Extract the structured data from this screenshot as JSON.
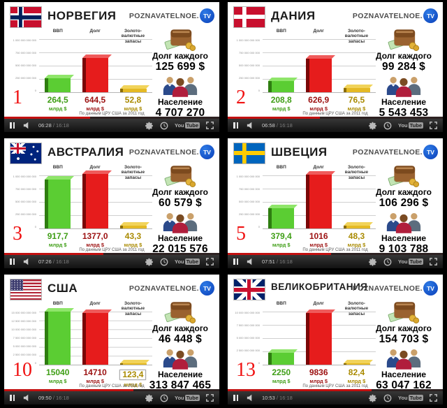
{
  "logo": {
    "brand": "POZNAVATELNOE.",
    "tv": "TV"
  },
  "chart": {
    "col_gdp": "ВВП",
    "col_debt": "Долг",
    "col_reserves": "Золото-валютные запасы",
    "unit": "млрд $",
    "source_note": "По данным ЦРУ США за 2011 год"
  },
  "sidebar": {
    "debt_each_label": "Долг каждого",
    "population_label": "Население"
  },
  "player": {
    "duration": "16:18",
    "sep": " / ",
    "yt_you": "You",
    "yt_tube": "Tube"
  },
  "colors": {
    "bar_green": "#5bcd33",
    "bar_red": "#e61c1c",
    "bar_gold": "#e5ba24",
    "value_green": "#3f9e16",
    "value_red": "#9c1111",
    "value_gold": "#a98a00",
    "rank_red": "#f01010",
    "progress_red": "#c21010",
    "logo_blue": "#0a3fb8"
  },
  "panels": [
    {
      "rank": "1",
      "country": "НОРВЕГИЯ",
      "flag": "norway",
      "axis": [
        "1 000 000 000 000",
        "750 000 000 000",
        "500 000 000 000",
        "250 000 000 000",
        "0"
      ],
      "grid_size": "100% 25%",
      "values": {
        "gdp": "264,5",
        "debt": "644,5",
        "reserves": "52,8"
      },
      "bar_heights": {
        "gdp": "26%",
        "debt": "64%",
        "res": "6%"
      },
      "reserves_boxed": "false",
      "debt_each": "125 699 $",
      "population": "4 707 270",
      "time": "06:28",
      "progress": "40%"
    },
    {
      "rank": "2",
      "country": "ДАНИЯ",
      "flag": "denmark",
      "axis": [
        "1 000 000 000 000",
        "750 000 000 000",
        "500 000 000 000",
        "250 000 000 000",
        "0"
      ],
      "grid_size": "100% 25%",
      "values": {
        "gdp": "208,8",
        "debt": "626,9",
        "reserves": "76,5"
      },
      "bar_heights": {
        "gdp": "21%",
        "debt": "63%",
        "res": "8%"
      },
      "reserves_boxed": "false",
      "debt_each": "99 284 $",
      "population": "5 543 453",
      "time": "06:58",
      "progress": "43%"
    },
    {
      "rank": "3",
      "country": "АВСТРАЛИЯ",
      "flag": "australia",
      "axis": [
        "1 000 000 000 000",
        "750 000 000 000",
        "500 000 000 000",
        "250 000 000 000",
        "0"
      ],
      "grid_size": "100% 25%",
      "values": {
        "gdp": "917,7",
        "debt": "1377,0",
        "reserves": "43,3"
      },
      "bar_heights": {
        "gdp": "92%",
        "debt": "102%",
        "res": "5%"
      },
      "reserves_boxed": "false",
      "debt_each": "60 579 $",
      "population": "22 015 576",
      "time": "07:26",
      "progress": "46%"
    },
    {
      "rank": "5",
      "country": "ШВЕЦИЯ",
      "flag": "sweden",
      "axis": [
        "1 000 000 000 000",
        "750 000 000 000",
        "500 000 000 000",
        "250 000 000 000",
        "0"
      ],
      "grid_size": "100% 25%",
      "values": {
        "gdp": "379,4",
        "debt": "1016",
        "reserves": "48,3"
      },
      "bar_heights": {
        "gdp": "38%",
        "debt": "101%",
        "res": "5%"
      },
      "reserves_boxed": "false",
      "debt_each": "106 296 $",
      "population": "9 103 788",
      "time": "07:51",
      "progress": "48%"
    },
    {
      "rank": "10",
      "country": "США",
      "flag": "usa",
      "axis": [
        "15 000 000 000 000",
        "12 500 000 000 000",
        "10 000 000 000 000",
        "7 500 000 000 000",
        "5 000 000 000 000",
        "2 500 000 000 000",
        "0"
      ],
      "grid_size": "100% 16.667%",
      "values": {
        "gdp": "15040",
        "debt": "14710",
        "reserves": "123,4"
      },
      "bar_heights": {
        "gdp": "100%",
        "debt": "97%",
        "res": "3%"
      },
      "reserves_boxed": "true",
      "debt_each": "46 448 $",
      "population": "313 847 465",
      "time": "09:50",
      "progress": "60%"
    },
    {
      "rank": "13",
      "country": "ВЕЛИКОБРИТАНИЯ",
      "flag": "uk",
      "axis": [
        "10 000 000 000 000",
        "7 500 000 000 000",
        "5 000 000 000 000",
        "2 500 000 000 000",
        "0"
      ],
      "grid_size": "100% 25%",
      "values": {
        "gdp": "2250",
        "debt": "9836",
        "reserves": "82,4"
      },
      "bar_heights": {
        "gdp": "22%",
        "debt": "97%",
        "res": "3%"
      },
      "reserves_boxed": "false",
      "debt_each": "154 703 $",
      "population": "63 047 162",
      "time": "10:53",
      "progress": "67%"
    }
  ],
  "chart_data": [
    {
      "type": "bar",
      "title": "НОРВЕГИЯ",
      "categories": [
        "ВВП",
        "Долг",
        "Золото-валютные запасы"
      ],
      "values": [
        264.5,
        644.5,
        52.8
      ],
      "unit": "млрд $",
      "ylim": [
        0,
        1000
      ],
      "debt_per_person_usd": 125699,
      "population": 4707270
    },
    {
      "type": "bar",
      "title": "ДАНИЯ",
      "categories": [
        "ВВП",
        "Долг",
        "Золото-валютные запасы"
      ],
      "values": [
        208.8,
        626.9,
        76.5
      ],
      "unit": "млрд $",
      "ylim": [
        0,
        1000
      ],
      "debt_per_person_usd": 99284,
      "population": 5543453
    },
    {
      "type": "bar",
      "title": "АВСТРАЛИЯ",
      "categories": [
        "ВВП",
        "Долг",
        "Золото-валютные запасы"
      ],
      "values": [
        917.7,
        1377.0,
        43.3
      ],
      "unit": "млрд $",
      "ylim": [
        0,
        1000
      ],
      "debt_per_person_usd": 60579,
      "population": 22015576
    },
    {
      "type": "bar",
      "title": "ШВЕЦИЯ",
      "categories": [
        "ВВП",
        "Долг",
        "Золото-валютные запасы"
      ],
      "values": [
        379.4,
        1016,
        48.3
      ],
      "unit": "млрд $",
      "ylim": [
        0,
        1000
      ],
      "debt_per_person_usd": 106296,
      "population": 9103788
    },
    {
      "type": "bar",
      "title": "США",
      "categories": [
        "ВВП",
        "Долг",
        "Золото-валютные запасы"
      ],
      "values": [
        15040,
        14710,
        123.4
      ],
      "unit": "млрд $",
      "ylim": [
        0,
        15000
      ],
      "debt_per_person_usd": 46448,
      "population": 313847465
    },
    {
      "type": "bar",
      "title": "ВЕЛИКОБРИТАНИЯ",
      "categories": [
        "ВВП",
        "Долг",
        "Золото-валютные запасы"
      ],
      "values": [
        2250,
        9836,
        82.4
      ],
      "unit": "млрд $",
      "ylim": [
        0,
        10000
      ],
      "debt_per_person_usd": 154703,
      "population": 63047162
    }
  ]
}
